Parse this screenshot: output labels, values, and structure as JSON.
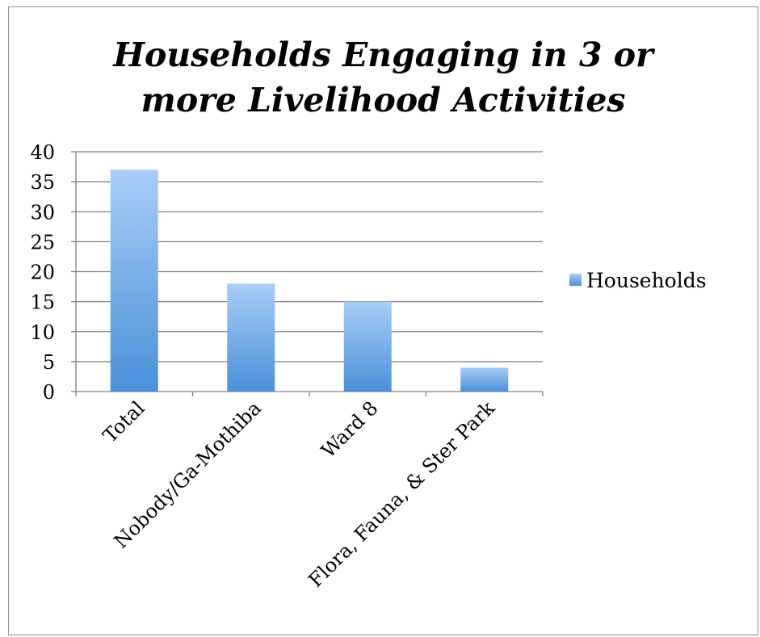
{
  "chart_data": {
    "type": "bar",
    "title_line1": "Households Engaging in 3 or",
    "title_line2": "more Livelihood Activities",
    "categories": [
      "Total",
      "Nobody/Ga-Mothiba",
      "Ward 8",
      "Flora, Fauna, & Ster Park"
    ],
    "series": [
      {
        "name": "Households",
        "values": [
          37,
          18,
          15,
          4
        ]
      }
    ],
    "yticks": [
      0,
      5,
      10,
      15,
      20,
      25,
      30,
      35,
      40
    ],
    "ylim": [
      0,
      40
    ],
    "grid": true,
    "legend_position": "right",
    "colors": {
      "bar_top": "#a9cdf7",
      "bar_bottom": "#4a90d9",
      "grid": "#7f7f7f"
    }
  }
}
